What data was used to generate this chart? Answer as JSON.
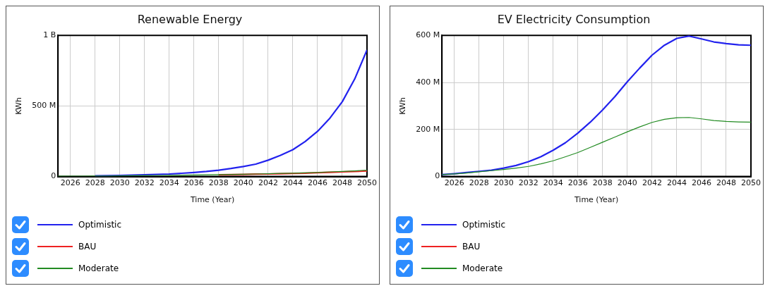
{
  "chart_data": [
    {
      "type": "line",
      "title": "Renewable Energy",
      "xlabel": "Time (Year)",
      "ylabel": "KWh",
      "x": [
        2025,
        2026,
        2027,
        2028,
        2029,
        2030,
        2031,
        2032,
        2033,
        2034,
        2035,
        2036,
        2037,
        2038,
        2039,
        2040,
        2041,
        2042,
        2043,
        2044,
        2045,
        2046,
        2047,
        2048,
        2049,
        2050
      ],
      "series": [
        {
          "name": "Optimistic",
          "color": "#2222ee",
          "values": [
            null,
            null,
            null,
            5000000,
            6000000,
            8000000,
            10000000,
            12000000,
            15000000,
            18000000,
            23000000,
            29000000,
            36000000,
            45000000,
            57000000,
            71000000,
            88000000,
            116000000,
            150000000,
            190000000,
            248000000,
            320000000,
            414000000,
            530000000,
            690000000,
            896000000
          ]
        },
        {
          "name": "BAU",
          "color": "#ee2222",
          "values": [
            null,
            null,
            null,
            null,
            null,
            null,
            null,
            null,
            null,
            null,
            null,
            null,
            null,
            12000000,
            14000000,
            15000000,
            17000000,
            18000000,
            20000000,
            22000000,
            24000000,
            27000000,
            30000000,
            33000000,
            36000000,
            40000000
          ]
        },
        {
          "name": "Moderate",
          "color": "#228b22",
          "values": [
            2000000,
            3000000,
            3000000,
            4000000,
            4000000,
            5000000,
            6000000,
            7000000,
            8000000,
            9000000,
            10000000,
            11000000,
            12000000,
            14000000,
            15000000,
            16000000,
            18000000,
            20000000,
            22000000,
            24000000,
            26000000,
            29000000,
            33000000,
            36000000,
            40000000,
            45000000
          ]
        }
      ],
      "xlim": [
        2025,
        2050
      ],
      "xticks": [
        2026,
        2028,
        2030,
        2032,
        2034,
        2036,
        2038,
        2040,
        2042,
        2044,
        2046,
        2048,
        2050
      ],
      "ylim": [
        0,
        1000000000
      ],
      "yticks": [
        {
          "value": 0,
          "label": "0"
        },
        {
          "value": 500000000,
          "label": "500 M"
        },
        {
          "value": 1000000000,
          "label": "1 B"
        }
      ],
      "grid": true,
      "legend": "bottom",
      "marker": "none",
      "line_style": "solid"
    },
    {
      "type": "line",
      "title": "EV Electricity Consumption",
      "xlabel": "Time (Year)",
      "ylabel": "KWh",
      "x": [
        2025,
        2026,
        2027,
        2028,
        2029,
        2030,
        2031,
        2032,
        2033,
        2034,
        2035,
        2036,
        2037,
        2038,
        2039,
        2040,
        2041,
        2042,
        2043,
        2044,
        2045,
        2046,
        2047,
        2048,
        2049,
        2050
      ],
      "series": [
        {
          "name": "Optimistic",
          "color": "#2222ee",
          "values": [
            8000000,
            12000000,
            17000000,
            22000000,
            27000000,
            36000000,
            47000000,
            63000000,
            84000000,
            112000000,
            144000000,
            185000000,
            231000000,
            283000000,
            340000000,
            403000000,
            461000000,
            516000000,
            558000000,
            587000000,
            597000000,
            585000000,
            572000000,
            565000000,
            560000000,
            558000000
          ]
        },
        {
          "name": "BAU",
          "color": "#ee2222",
          "values": [
            null,
            null,
            null,
            null,
            null,
            null,
            null,
            null,
            null,
            null,
            null,
            null,
            null,
            null,
            null,
            null,
            null,
            null,
            null,
            null,
            null,
            null,
            null,
            null,
            null,
            null
          ]
        },
        {
          "name": "Moderate",
          "color": "#228b22",
          "values": [
            8000000,
            11000000,
            15000000,
            20000000,
            25000000,
            30000000,
            36000000,
            43000000,
            54000000,
            67000000,
            84000000,
            102000000,
            124000000,
            146000000,
            168000000,
            190000000,
            211000000,
            230000000,
            243000000,
            250000000,
            251000000,
            245000000,
            238000000,
            234000000,
            232000000,
            231000000
          ]
        }
      ],
      "xlim": [
        2025,
        2050
      ],
      "xticks": [
        2026,
        2028,
        2030,
        2032,
        2034,
        2036,
        2038,
        2040,
        2042,
        2044,
        2046,
        2048,
        2050
      ],
      "ylim": [
        0,
        600000000
      ],
      "yticks": [
        {
          "value": 0,
          "label": "0"
        },
        {
          "value": 200000000,
          "label": "200 M"
        },
        {
          "value": 400000000,
          "label": "400 M"
        },
        {
          "value": 600000000,
          "label": "600 M"
        }
      ],
      "grid": true,
      "legend": "bottom",
      "marker": "none",
      "line_style": "solid"
    }
  ]
}
